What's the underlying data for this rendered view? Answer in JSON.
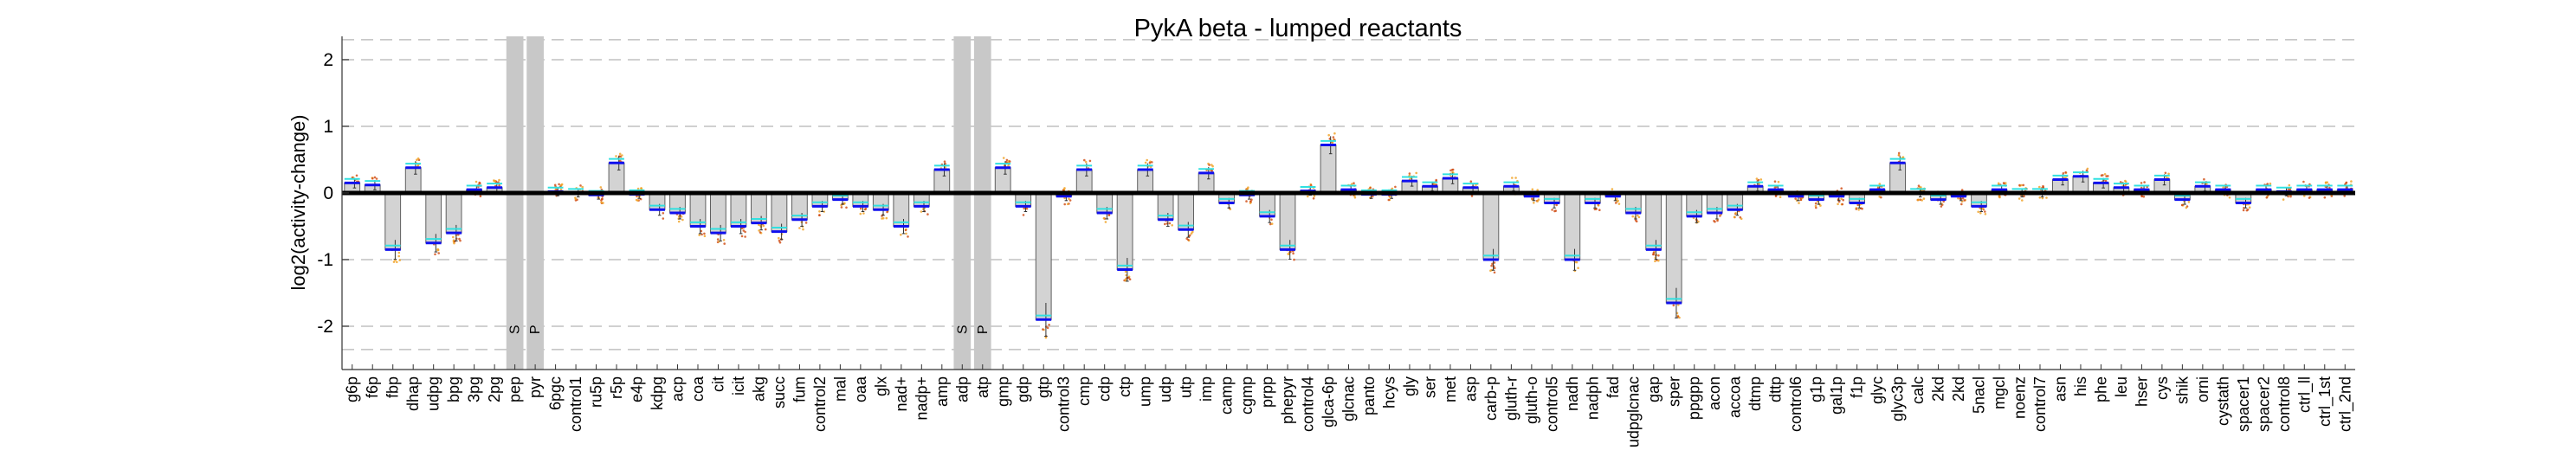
{
  "chart_data": {
    "type": "bar",
    "title": "PykA beta - lumped reactants",
    "ylabel": "log2(activity-change)",
    "xlabel": "",
    "ylim": [
      -2.65,
      2.35
    ],
    "yticks": [
      -2,
      -1,
      0,
      1,
      2
    ],
    "grid": "horizontal dashed",
    "colors": {
      "bar_fill": "#d3d3d3",
      "bar_edge": "#606060",
      "median_line": "#1010ee",
      "mean_line": "#30e0e0",
      "scatter_dark": "#d04a10",
      "scatter_light": "#f0a020",
      "highlight": "#c8c8c8",
      "grid": "#c0c0c0"
    },
    "categories": [
      "g6p",
      "f6p",
      "fbp",
      "dhap",
      "udpg",
      "bpg",
      "3pg",
      "2pg",
      "pep",
      "pyr",
      "6pgc",
      "control1",
      "ru5p",
      "r5p",
      "e4p",
      "kdpg",
      "acp",
      "coa",
      "cit",
      "icit",
      "akg",
      "succ",
      "fum",
      "control2",
      "mal",
      "oaa",
      "glx",
      "nad+",
      "nadp+",
      "amp",
      "adp",
      "atp",
      "gmp",
      "gdp",
      "gtp",
      "control3",
      "cmp",
      "cdp",
      "ctp",
      "ump",
      "udp",
      "utp",
      "imp",
      "camp",
      "cgmp",
      "prpp",
      "phepyr",
      "control4",
      "glca-6p",
      "glcnac",
      "panto",
      "hcys",
      "gly",
      "ser",
      "met",
      "asp",
      "carb-p",
      "gluth-r",
      "gluth-o",
      "control5",
      "nadh",
      "nadph",
      "fad",
      "udpglcnac",
      "gap",
      "sper",
      "ppgpp",
      "acon",
      "accoa",
      "dtmp",
      "dttp",
      "control6",
      "g1p",
      "gal1p",
      "f1p",
      "glyc",
      "glyc3p",
      "calc",
      "2kd",
      "2kd",
      "5nacl",
      "mgcl",
      "noenz",
      "control7",
      "asn",
      "his",
      "phe",
      "leu",
      "hser",
      "cys",
      "shik",
      "orni",
      "cystath",
      "spacer1",
      "spacer2",
      "control8",
      "ctrl_ll",
      "ctrl_1st",
      "ctrl_2nd"
    ],
    "values": [
      0.15,
      0.12,
      -0.85,
      0.38,
      -0.75,
      -0.6,
      0.05,
      0.08,
      0,
      0,
      0.02,
      0.0,
      -0.03,
      0.45,
      -0.02,
      -0.25,
      -0.3,
      -0.5,
      -0.6,
      -0.5,
      -0.45,
      -0.58,
      -0.4,
      -0.2,
      -0.1,
      -0.2,
      -0.25,
      -0.5,
      -0.2,
      0.35,
      0,
      0,
      0.38,
      -0.2,
      -1.9,
      -0.05,
      0.35,
      -0.3,
      -1.15,
      0.35,
      -0.4,
      -0.55,
      0.3,
      -0.15,
      -0.03,
      -0.35,
      -0.85,
      0.03,
      0.72,
      0.05,
      -0.02,
      -0.02,
      0.18,
      0.1,
      0.22,
      0.08,
      -1.0,
      0.1,
      -0.05,
      -0.15,
      -1.0,
      -0.15,
      -0.05,
      -0.3,
      -0.85,
      -1.65,
      -0.35,
      -0.3,
      -0.25,
      0.1,
      0.05,
      -0.05,
      -0.1,
      -0.05,
      -0.15,
      0.05,
      0.45,
      0.0,
      -0.1,
      -0.05,
      -0.2,
      0.05,
      0.0,
      0.0,
      0.2,
      0.25,
      0.15,
      0.08,
      0.05,
      0.2,
      -0.1,
      0.1,
      0.05,
      -0.15,
      0.05,
      0.02,
      0.05,
      0.05,
      0.05
    ],
    "highlight_bands": [
      {
        "category": "pep",
        "label": "S"
      },
      {
        "category": "pyr",
        "label": "P"
      },
      {
        "category": "adp",
        "label": "S"
      },
      {
        "category": "atp",
        "label": "P"
      }
    ]
  }
}
